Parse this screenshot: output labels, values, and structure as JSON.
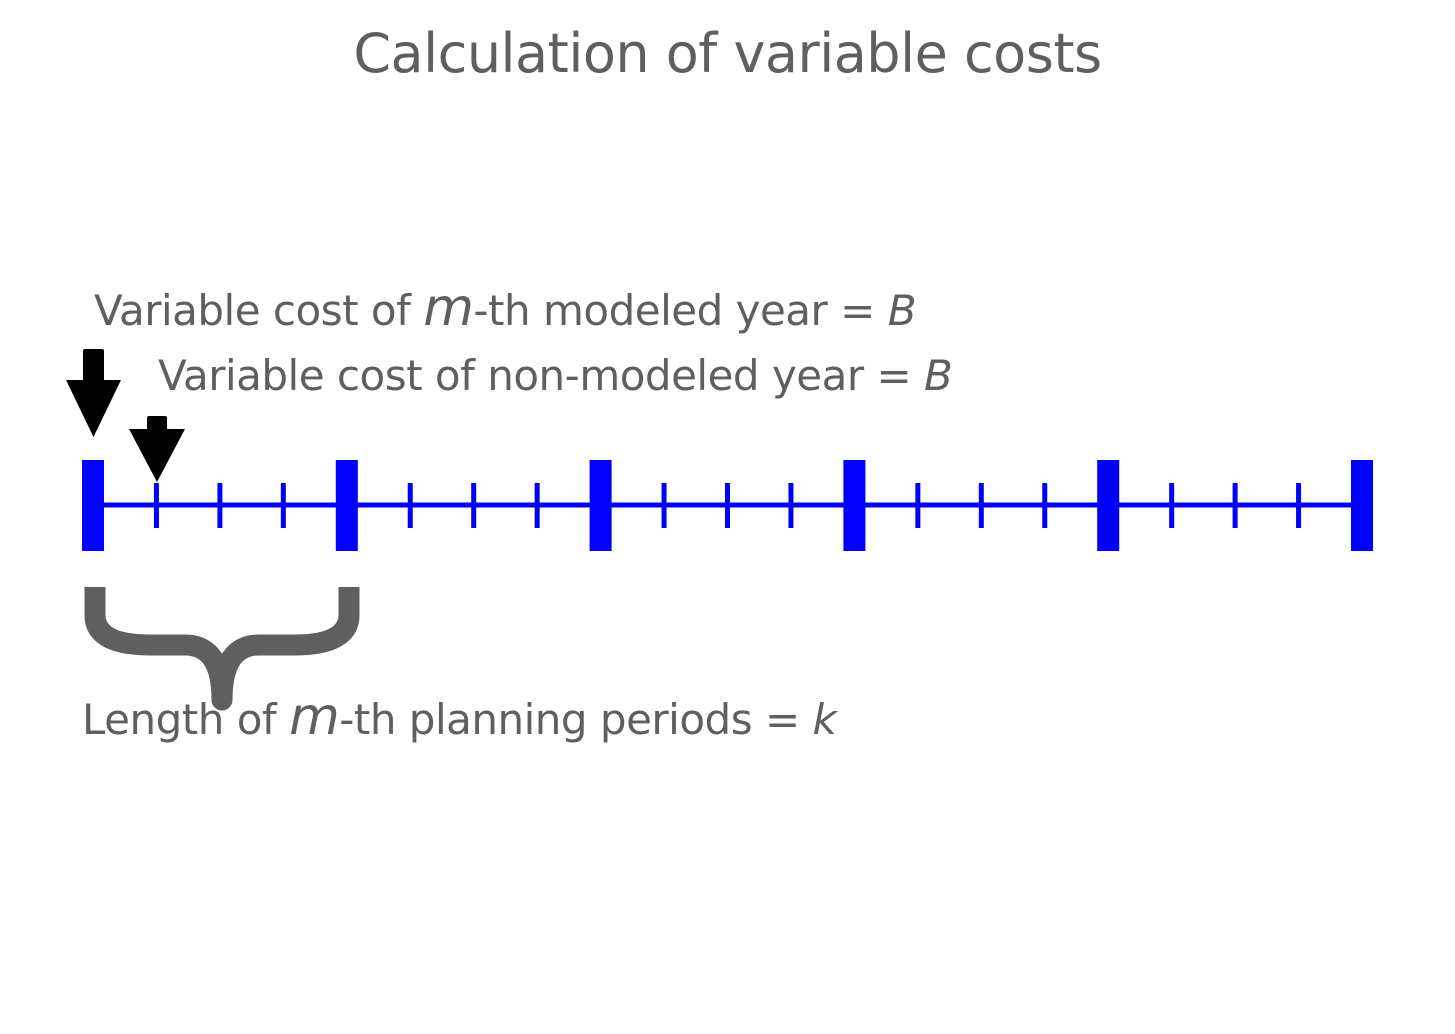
{
  "title": "Calculation of variable costs",
  "modeled_label": {
    "prefix": "Variable cost of ",
    "var": "m",
    "suffix": "-th modeled year = ",
    "value": "B"
  },
  "nonmodeled_label": {
    "prefix": "Variable cost of non-modeled year = ",
    "value": "B"
  },
  "length_label": {
    "prefix": "Length of ",
    "var": "m",
    "suffix": "-th planning periods = ",
    "value": "k"
  },
  "timeline": {
    "periods": 5,
    "years_per_period": 4,
    "line_color": "#0000ff"
  },
  "colors": {
    "text": "#5f5f5f",
    "arrow": "#000000",
    "brace": "#5f5f5f"
  },
  "icons": {
    "modeled_arrow": "down-arrow-icon",
    "nonmodeled_arrow": "down-arrow-icon",
    "brace": "curly-brace-icon"
  }
}
